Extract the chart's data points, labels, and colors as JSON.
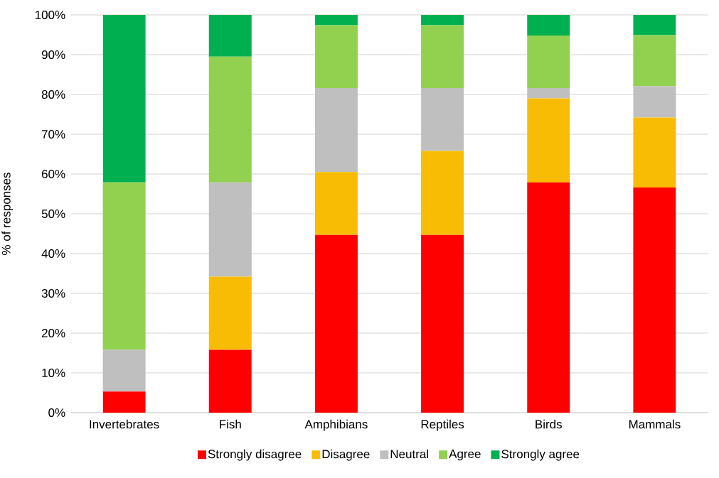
{
  "chart_data": {
    "type": "bar",
    "stacked": true,
    "ylabel": "% of responses",
    "categories": [
      "Invertebrates",
      "Fish",
      "Amphibians",
      "Reptiles",
      "Birds",
      "Mammals"
    ],
    "series": [
      {
        "name": "Strongly disagree",
        "color": "#ff0000",
        "values": [
          5.3,
          15.8,
          44.7,
          44.7,
          57.9,
          56.6
        ]
      },
      {
        "name": "Disagree",
        "color": "#f9bc05",
        "values": [
          0,
          18.4,
          15.8,
          21.1,
          21.1,
          17.6
        ]
      },
      {
        "name": "Neutral",
        "color": "#bfbfbf",
        "values": [
          10.5,
          23.7,
          21.1,
          15.8,
          2.6,
          7.9
        ]
      },
      {
        "name": "Agree",
        "color": "#92d050",
        "values": [
          42.1,
          31.6,
          15.8,
          15.8,
          13.2,
          12.8
        ]
      },
      {
        "name": "Strongly agree",
        "color": "#00b050",
        "values": [
          42.1,
          10.5,
          2.6,
          2.6,
          5.3,
          5.1
        ]
      }
    ],
    "ylim": [
      0,
      100
    ],
    "yticks": [
      {
        "value": 0,
        "label": "0%"
      },
      {
        "value": 10,
        "label": "10%"
      },
      {
        "value": 20,
        "label": "20%"
      },
      {
        "value": 30,
        "label": "30%"
      },
      {
        "value": 40,
        "label": "40%"
      },
      {
        "value": 50,
        "label": "50%"
      },
      {
        "value": 60,
        "label": "60%"
      },
      {
        "value": 70,
        "label": "70%"
      },
      {
        "value": 80,
        "label": "80%"
      },
      {
        "value": 90,
        "label": "90%"
      },
      {
        "value": 100,
        "label": "100%"
      }
    ],
    "grid": "y",
    "legend": "bottom"
  }
}
